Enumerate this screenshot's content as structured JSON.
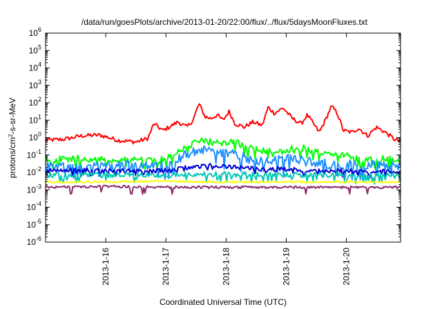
{
  "chart_data": {
    "type": "line",
    "title": "/data/run/goesPlots/archive/2013-01-20/22:00/flux/../flux/5daysMoonFluxes.txt",
    "xlabel": "Coordinated Universal Time (UTC)",
    "ylabel": "protons/cm2-s-sr-MeV",
    "ylabel_base": "protons/cm",
    "ylabel_sup": "2",
    "ylabel_rest": "-s-sr-MeV",
    "yscale": "log",
    "ylim": [
      1e-06,
      1000000.0
    ],
    "xlim": [
      0.0,
      5.9
    ],
    "x_unit": "days since 2013-01-15 00:00 UTC",
    "grid": false,
    "legend": "none",
    "y_ticks": [
      {
        "base": "10",
        "exp": "-6",
        "value": -6
      },
      {
        "base": "10",
        "exp": "-5",
        "value": -5
      },
      {
        "base": "10",
        "exp": "-4",
        "value": -4
      },
      {
        "base": "10",
        "exp": "-3",
        "value": -3
      },
      {
        "base": "10",
        "exp": "-2",
        "value": -2
      },
      {
        "base": "10",
        "exp": "-1",
        "value": -1
      },
      {
        "base": "10",
        "exp": "0",
        "value": 0
      },
      {
        "base": "10",
        "exp": "1",
        "value": 1
      },
      {
        "base": "10",
        "exp": "2",
        "value": 2
      },
      {
        "base": "10",
        "exp": "3",
        "value": 3
      },
      {
        "base": "10",
        "exp": "4",
        "value": 4
      },
      {
        "base": "10",
        "exp": "5",
        "value": 5
      },
      {
        "base": "10",
        "exp": "6",
        "value": 6
      }
    ],
    "x_ticks": [
      {
        "label": "2013-1-16",
        "value": 1
      },
      {
        "label": "2013-1-17",
        "value": 2
      },
      {
        "label": "2013-1-18",
        "value": 3
      },
      {
        "label": "2013-1-19",
        "value": 4
      },
      {
        "label": "2013-1-20",
        "value": 5
      }
    ],
    "series": [
      {
        "color": "#ff0000",
        "points": [
          [
            0.0,
            -0.15
          ],
          [
            0.3,
            -0.1
          ],
          [
            0.6,
            0.1
          ],
          [
            0.9,
            0.15
          ],
          [
            1.0,
            0.05
          ],
          [
            1.2,
            -0.15
          ],
          [
            1.5,
            -0.25
          ],
          [
            1.7,
            -0.05
          ],
          [
            1.8,
            0.8
          ],
          [
            1.95,
            0.4
          ],
          [
            2.2,
            0.9
          ],
          [
            2.35,
            0.6
          ],
          [
            2.45,
            1.0
          ],
          [
            2.55,
            1.95
          ],
          [
            2.65,
            1.2
          ],
          [
            2.75,
            1.1
          ],
          [
            2.85,
            1.3
          ],
          [
            2.95,
            1.0
          ],
          [
            3.05,
            1.5
          ],
          [
            3.15,
            0.8
          ],
          [
            3.3,
            0.6
          ],
          [
            3.45,
            0.9
          ],
          [
            3.6,
            0.7
          ],
          [
            3.7,
            1.75
          ],
          [
            3.8,
            1.4
          ],
          [
            3.95,
            1.7
          ],
          [
            4.1,
            1.1
          ],
          [
            4.25,
            0.8
          ],
          [
            4.35,
            1.3
          ],
          [
            4.55,
            0.3
          ],
          [
            4.65,
            1.0
          ],
          [
            4.75,
            1.8
          ],
          [
            4.85,
            1.4
          ],
          [
            4.95,
            0.4
          ],
          [
            5.1,
            0.3
          ],
          [
            5.2,
            0.55
          ],
          [
            5.35,
            0.1
          ],
          [
            5.5,
            0.6
          ],
          [
            5.65,
            0.3
          ],
          [
            5.8,
            -0.1
          ],
          [
            5.9,
            -0.25
          ]
        ]
      },
      {
        "color": "#00ff00",
        "points": [
          [
            0.0,
            -1.3
          ],
          [
            0.5,
            -1.2
          ],
          [
            1.0,
            -1.3
          ],
          [
            1.5,
            -1.25
          ],
          [
            1.9,
            -1.3
          ],
          [
            2.1,
            -1.05
          ],
          [
            2.3,
            -0.55
          ],
          [
            2.6,
            -0.2
          ],
          [
            2.9,
            -0.3
          ],
          [
            3.1,
            -0.2
          ],
          [
            3.3,
            -0.5
          ],
          [
            3.6,
            -0.7
          ],
          [
            3.9,
            -0.8
          ],
          [
            4.1,
            -0.55
          ],
          [
            4.3,
            -0.6
          ],
          [
            4.6,
            -0.9
          ],
          [
            4.9,
            -1.0
          ],
          [
            5.2,
            -1.2
          ],
          [
            5.5,
            -1.2
          ],
          [
            5.9,
            -1.3
          ]
        ]
      },
      {
        "color": "#1e90ff",
        "points": [
          [
            0.0,
            -1.65
          ],
          [
            0.5,
            -1.6
          ],
          [
            1.0,
            -1.65
          ],
          [
            1.5,
            -1.6
          ],
          [
            1.9,
            -1.65
          ],
          [
            2.1,
            -1.45
          ],
          [
            2.3,
            -1.0
          ],
          [
            2.6,
            -0.7
          ],
          [
            2.9,
            -0.9
          ],
          [
            3.1,
            -0.9
          ],
          [
            3.3,
            -1.15
          ],
          [
            3.6,
            -1.35
          ],
          [
            3.9,
            -1.3
          ],
          [
            4.1,
            -1.2
          ],
          [
            4.3,
            -1.35
          ],
          [
            4.6,
            -1.5
          ],
          [
            4.9,
            -1.55
          ],
          [
            5.2,
            -1.6
          ],
          [
            5.5,
            -1.55
          ],
          [
            5.9,
            -1.6
          ]
        ]
      },
      {
        "color": "#0000d0",
        "points": [
          [
            0.0,
            -1.9
          ],
          [
            0.5,
            -1.85
          ],
          [
            1.0,
            -1.9
          ],
          [
            1.5,
            -1.9
          ],
          [
            1.9,
            -1.9
          ],
          [
            2.2,
            -1.8
          ],
          [
            2.5,
            -1.65
          ],
          [
            2.8,
            -1.6
          ],
          [
            3.1,
            -1.7
          ],
          [
            3.4,
            -1.75
          ],
          [
            3.8,
            -1.8
          ],
          [
            4.2,
            -1.85
          ],
          [
            4.6,
            -1.9
          ],
          [
            5.0,
            -1.9
          ],
          [
            5.4,
            -1.95
          ],
          [
            5.9,
            -1.95
          ]
        ]
      },
      {
        "color": "#00c8b4",
        "points": [
          [
            0.0,
            -2.15
          ],
          [
            1.0,
            -2.15
          ],
          [
            2.0,
            -2.15
          ],
          [
            2.6,
            -2.1
          ],
          [
            3.0,
            -2.1
          ],
          [
            4.0,
            -2.15
          ],
          [
            5.0,
            -2.15
          ],
          [
            5.9,
            -2.2
          ]
        ]
      },
      {
        "color": "#ffff00",
        "points": [
          [
            0.0,
            -2.55
          ],
          [
            1.0,
            -2.55
          ],
          [
            2.0,
            -2.5
          ],
          [
            3.0,
            -2.55
          ],
          [
            4.0,
            -2.55
          ],
          [
            5.0,
            -2.55
          ],
          [
            5.9,
            -2.55
          ]
        ]
      },
      {
        "color": "#8b2a6e",
        "points": [
          [
            0.0,
            -2.85
          ],
          [
            1.0,
            -2.8
          ],
          [
            2.0,
            -2.85
          ],
          [
            3.0,
            -2.85
          ],
          [
            4.0,
            -2.85
          ],
          [
            5.0,
            -2.85
          ],
          [
            5.9,
            -2.85
          ]
        ]
      }
    ]
  }
}
